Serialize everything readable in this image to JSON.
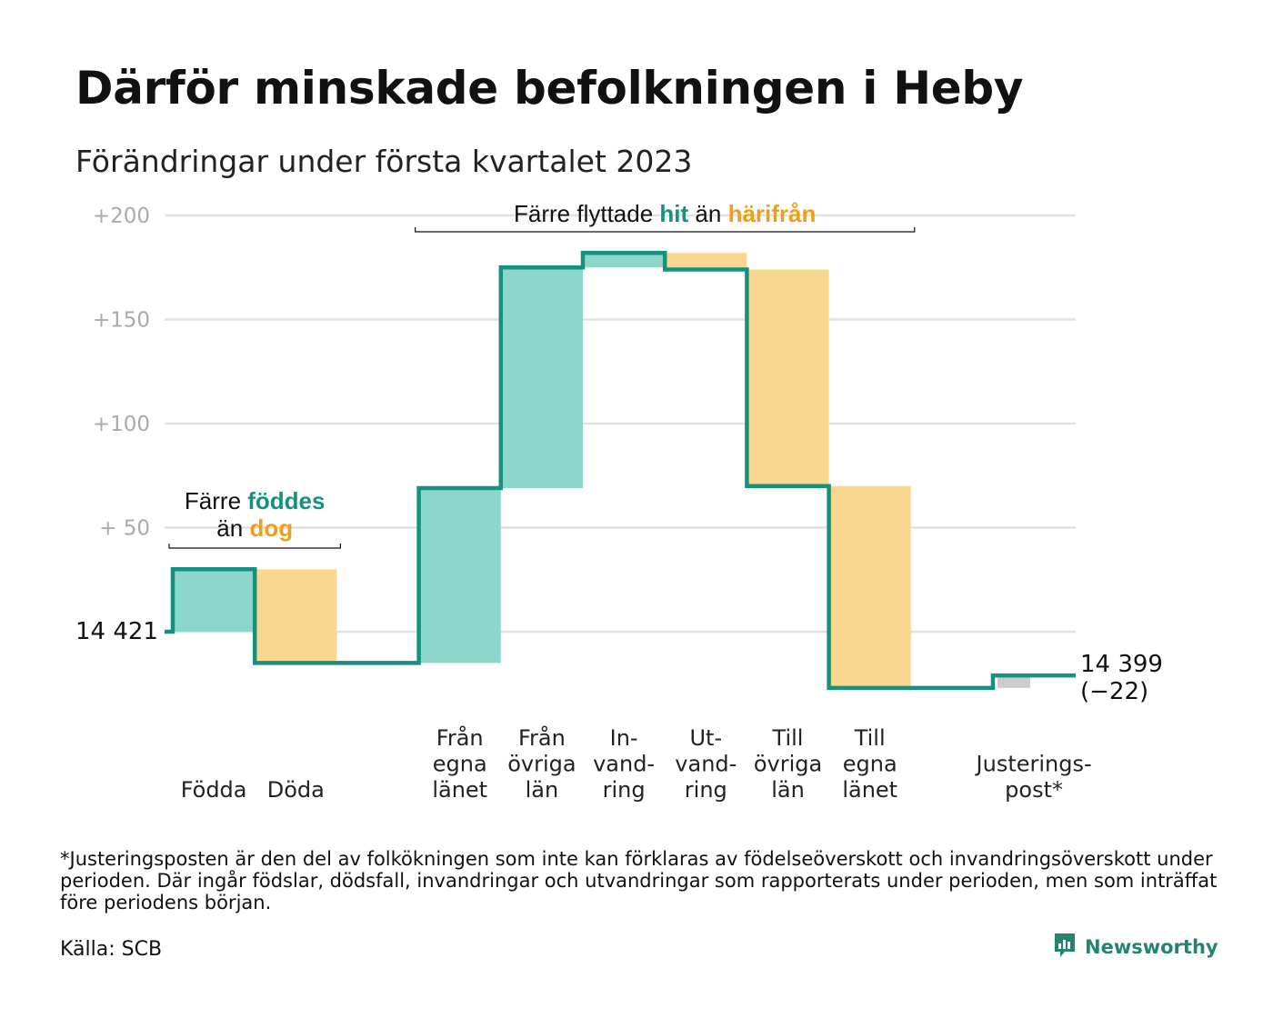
{
  "title": "Därför minskade befolkningen i Heby",
  "subtitle": "Förändringar under första kvartalet 2023",
  "footnote": "*Justeringsposten är den del av folkökningen som inte kan förklaras av födelseöverskott och invandringsöverskott under perioden. Där ingår födslar, dödsfall, invandringar och utvandringar som rapporterats under perioden, men som inträffat före periodens början.",
  "source": "Källa: SCB",
  "brand": {
    "name": "Newsworthy",
    "icon": "newsworthy-logo-icon"
  },
  "colors": {
    "increase": "#8dd6cc",
    "decrease": "#fad78e",
    "adjustment": "#cccccc",
    "line": "#17917f",
    "teal_text": "#14917f",
    "orange_text": "#ee9f1a",
    "grid": "#e1e1e1",
    "axis_text": "#aaaaaa"
  },
  "chart_data": {
    "type": "waterfall",
    "start_value": 14421,
    "start_label": "14 421",
    "end_value": 14399,
    "end_label": "14 399",
    "end_change_label": "(−22)",
    "y_ticks": [
      {
        "value": 200,
        "label": "+200"
      },
      {
        "value": 150,
        "label": "+150"
      },
      {
        "value": 100,
        "label": "+100"
      },
      {
        "value": 50,
        "label": "+ 50"
      }
    ],
    "ylim": [
      -30,
      200
    ],
    "grid": true,
    "steps": [
      {
        "label_lines": [
          "Födda"
        ],
        "delta": 30,
        "kind": "increase"
      },
      {
        "label_lines": [
          "Döda"
        ],
        "delta": -45,
        "kind": "decrease"
      },
      {
        "label_lines": [],
        "delta": 0,
        "kind": "gap"
      },
      {
        "label_lines": [
          "Från",
          "egna",
          "länet"
        ],
        "delta": 84,
        "kind": "increase"
      },
      {
        "label_lines": [
          "Från",
          "övriga",
          "län"
        ],
        "delta": 106,
        "kind": "increase"
      },
      {
        "label_lines": [
          "In-",
          "vand-",
          "ring"
        ],
        "delta": 7,
        "kind": "increase"
      },
      {
        "label_lines": [
          "Ut-",
          "vand-",
          "ring"
        ],
        "delta": -8,
        "kind": "decrease"
      },
      {
        "label_lines": [
          "Till",
          "övriga",
          "län"
        ],
        "delta": -104,
        "kind": "decrease"
      },
      {
        "label_lines": [
          "Till",
          "egna",
          "länet"
        ],
        "delta": -97,
        "kind": "decrease"
      },
      {
        "label_lines": [],
        "delta": 0,
        "kind": "gap"
      },
      {
        "label_lines": [
          "Justerings-",
          "post*"
        ],
        "delta": 6,
        "kind": "adjustment"
      }
    ],
    "annotations": [
      {
        "id": "births",
        "parts": [
          [
            {
              "text": "Färre ",
              "style": "plain"
            },
            {
              "text": "föddes",
              "style": "teal"
            }
          ],
          [
            {
              "text": "än ",
              "style": "plain"
            },
            {
              "text": "dog",
              "style": "orange"
            }
          ]
        ],
        "from_step": 0,
        "to_step": 1
      },
      {
        "id": "migration",
        "parts": [
          [
            {
              "text": "Färre flyttade ",
              "style": "plain"
            },
            {
              "text": "hit",
              "style": "teal"
            },
            {
              "text": " än ",
              "style": "plain"
            },
            {
              "text": "härifrån",
              "style": "orange"
            }
          ]
        ],
        "from_step": 3,
        "to_step": 8
      }
    ]
  }
}
